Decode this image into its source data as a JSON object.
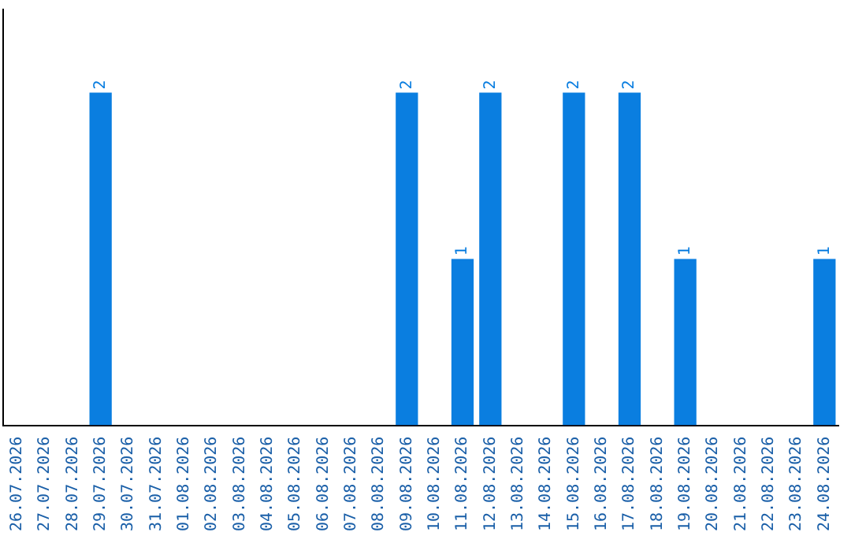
{
  "chart_data": {
    "type": "bar",
    "categories": [
      "26.07.2026",
      "27.07.2026",
      "28.07.2026",
      "29.07.2026",
      "30.07.2026",
      "31.07.2026",
      "01.08.2026",
      "02.08.2026",
      "03.08.2026",
      "04.08.2026",
      "05.08.2026",
      "06.08.2026",
      "07.08.2026",
      "08.08.2026",
      "09.08.2026",
      "10.08.2026",
      "11.08.2026",
      "12.08.2026",
      "13.08.2026",
      "14.08.2026",
      "15.08.2026",
      "16.08.2026",
      "17.08.2026",
      "18.08.2026",
      "19.08.2026",
      "20.08.2026",
      "21.08.2026",
      "22.08.2026",
      "23.08.2026",
      "24.08.2026"
    ],
    "values": [
      null,
      null,
      null,
      2,
      null,
      null,
      null,
      null,
      null,
      null,
      null,
      null,
      null,
      null,
      2,
      null,
      1,
      2,
      null,
      null,
      2,
      null,
      2,
      null,
      1,
      null,
      null,
      null,
      null,
      1
    ],
    "color": "#0a7ee0",
    "data_labels": true,
    "tick_labels": "x",
    "grid": false,
    "legend": false
  }
}
